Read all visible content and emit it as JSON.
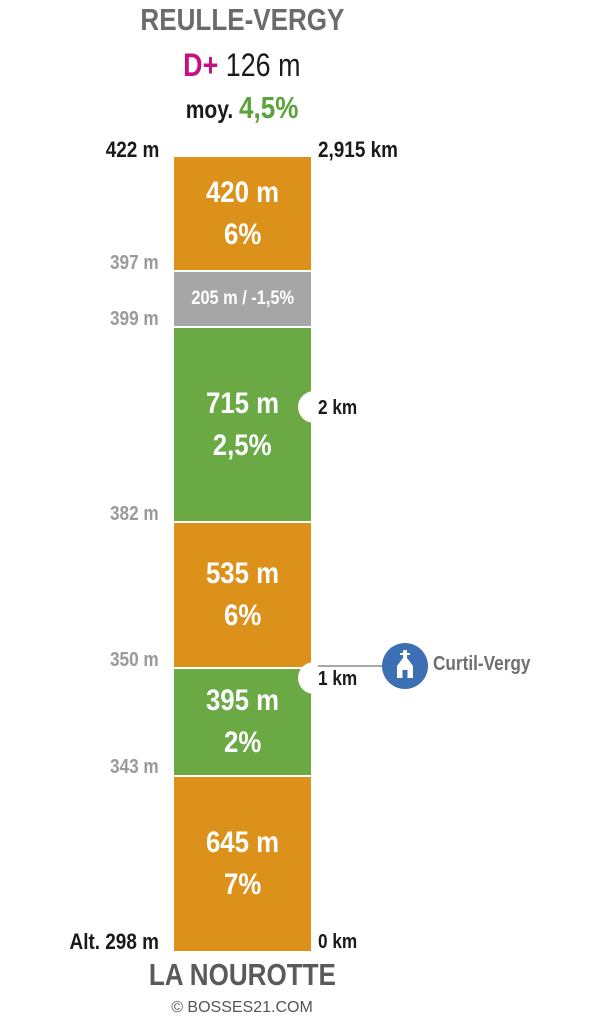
{
  "header": {
    "title": "REULLE-VERGY",
    "gain_prefix": "D+",
    "gain_value": "126 m",
    "avg_prefix": "moy.",
    "avg_value": "4,5%"
  },
  "footer": {
    "start_name": "LA NOUROTTE",
    "credit": "© BOSSES21.COM"
  },
  "colors": {
    "orange": "#dc911b",
    "green": "#6aa944",
    "gray": "#a6a6a6",
    "magenta": "#c5117f",
    "blue": "#3d6fb4"
  },
  "chart_data": {
    "type": "bar",
    "orientation": "vertical-profile",
    "total_distance_km": 2.915,
    "total_distance_label": "2,915 km",
    "start_altitude_label": "Alt. 298 m",
    "summit_altitude_label": "422 m",
    "altitude_labels": [
      "343 m",
      "350 m",
      "382 m",
      "399 m",
      "397 m"
    ],
    "km_markers": [
      {
        "km": 0,
        "label": "0 km"
      },
      {
        "km": 1,
        "label": "1 km"
      },
      {
        "km": 2,
        "label": "2 km"
      }
    ],
    "segments": [
      {
        "length_m": 645,
        "grade_pct": 7,
        "length_label": "645 m",
        "grade_label": "7%",
        "color": "orange"
      },
      {
        "length_m": 395,
        "grade_pct": 2,
        "length_label": "395 m",
        "grade_label": "2%",
        "color": "green"
      },
      {
        "length_m": 535,
        "grade_pct": 6,
        "length_label": "535 m",
        "grade_label": "6%",
        "color": "orange"
      },
      {
        "length_m": 715,
        "grade_pct": 2.5,
        "length_label": "715 m",
        "grade_label": "2,5%",
        "color": "green"
      },
      {
        "length_m": 205,
        "grade_pct": -1.5,
        "inline_label": "205 m / -1,5%",
        "color": "gray"
      },
      {
        "length_m": 420,
        "grade_pct": 6,
        "length_label": "420 m",
        "grade_label": "6%",
        "color": "orange"
      }
    ],
    "poi": {
      "name": "Curtil-Vergy",
      "at_km": 1,
      "icon": "church-icon"
    }
  }
}
